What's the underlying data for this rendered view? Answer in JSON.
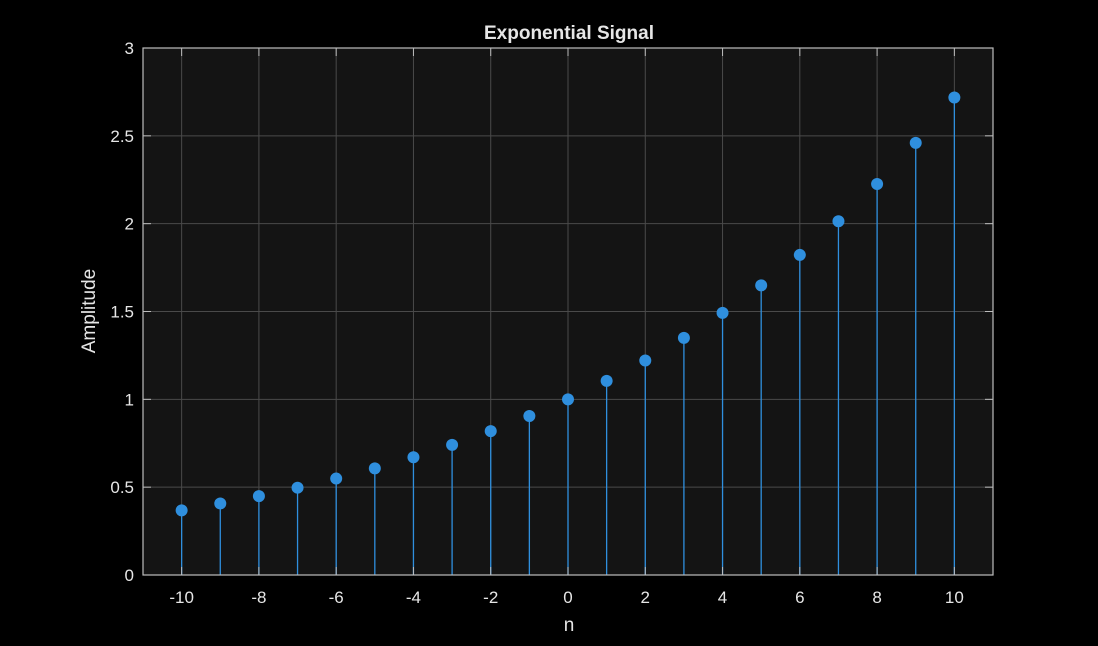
{
  "chart_data": {
    "type": "stem",
    "title": "Exponential Signal",
    "xlabel": "n",
    "ylabel": "Amplitude",
    "xlim": [
      -11,
      11
    ],
    "ylim": [
      0,
      3
    ],
    "xticks": [
      -10,
      -8,
      -6,
      -4,
      -2,
      0,
      2,
      4,
      6,
      8,
      10
    ],
    "yticks": [
      0,
      0.5,
      1,
      1.5,
      2,
      2.5,
      3
    ],
    "xtick_labels": [
      "-10",
      "-8",
      "-6",
      "-4",
      "-2",
      "0",
      "2",
      "4",
      "6",
      "8",
      "10"
    ],
    "ytick_labels": [
      "0",
      "0.5",
      "1",
      "1.5",
      "2",
      "2.5",
      "3"
    ],
    "grid": true,
    "x": [
      -10,
      -9,
      -8,
      -7,
      -6,
      -5,
      -4,
      -3,
      -2,
      -1,
      0,
      1,
      2,
      3,
      4,
      5,
      6,
      7,
      8,
      9,
      10
    ],
    "series": [
      {
        "color": "#2f8fde",
        "values": [
          0.368,
          0.407,
          0.449,
          0.497,
          0.549,
          0.607,
          0.67,
          0.741,
          0.819,
          0.905,
          1.0,
          1.105,
          1.221,
          1.35,
          1.492,
          1.649,
          1.822,
          2.014,
          2.226,
          2.46,
          2.718
        ]
      }
    ],
    "colors": {
      "background": "#000000",
      "axes_background": "#141414",
      "axes_edge": "#bdbdbd",
      "grid": "#4a4a4a",
      "text": "#e6e6e6"
    }
  }
}
